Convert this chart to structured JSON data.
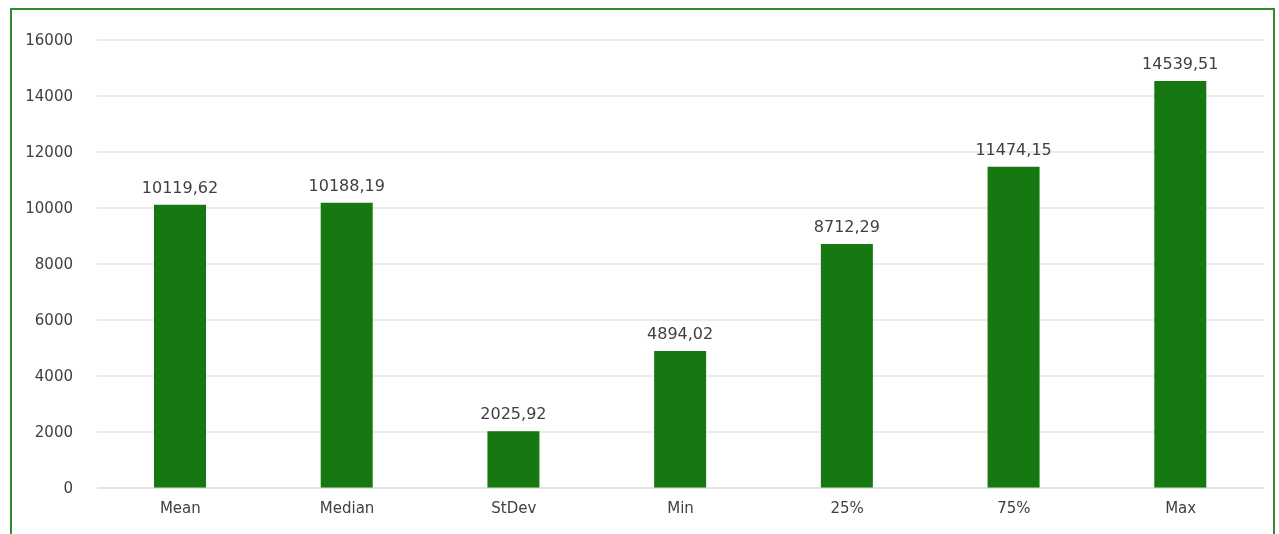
{
  "chart_data": {
    "type": "bar",
    "categories": [
      "Mean",
      "Median",
      "StDev",
      "Min",
      "25%",
      "75%",
      "Max"
    ],
    "values": [
      10119.62,
      10188.19,
      2025.92,
      4894.02,
      8712.29,
      11474.15,
      14539.51
    ],
    "value_labels": [
      "10119,62",
      "10188,19",
      "2025,92",
      "4894,02",
      "8712,29",
      "11474,15",
      "14539,51"
    ],
    "color": "#157811",
    "ylim": [
      0,
      16000
    ],
    "yticks": [
      0,
      2000,
      4000,
      6000,
      8000,
      10000,
      12000,
      14000,
      16000
    ],
    "grid": "y",
    "legend": false
  }
}
